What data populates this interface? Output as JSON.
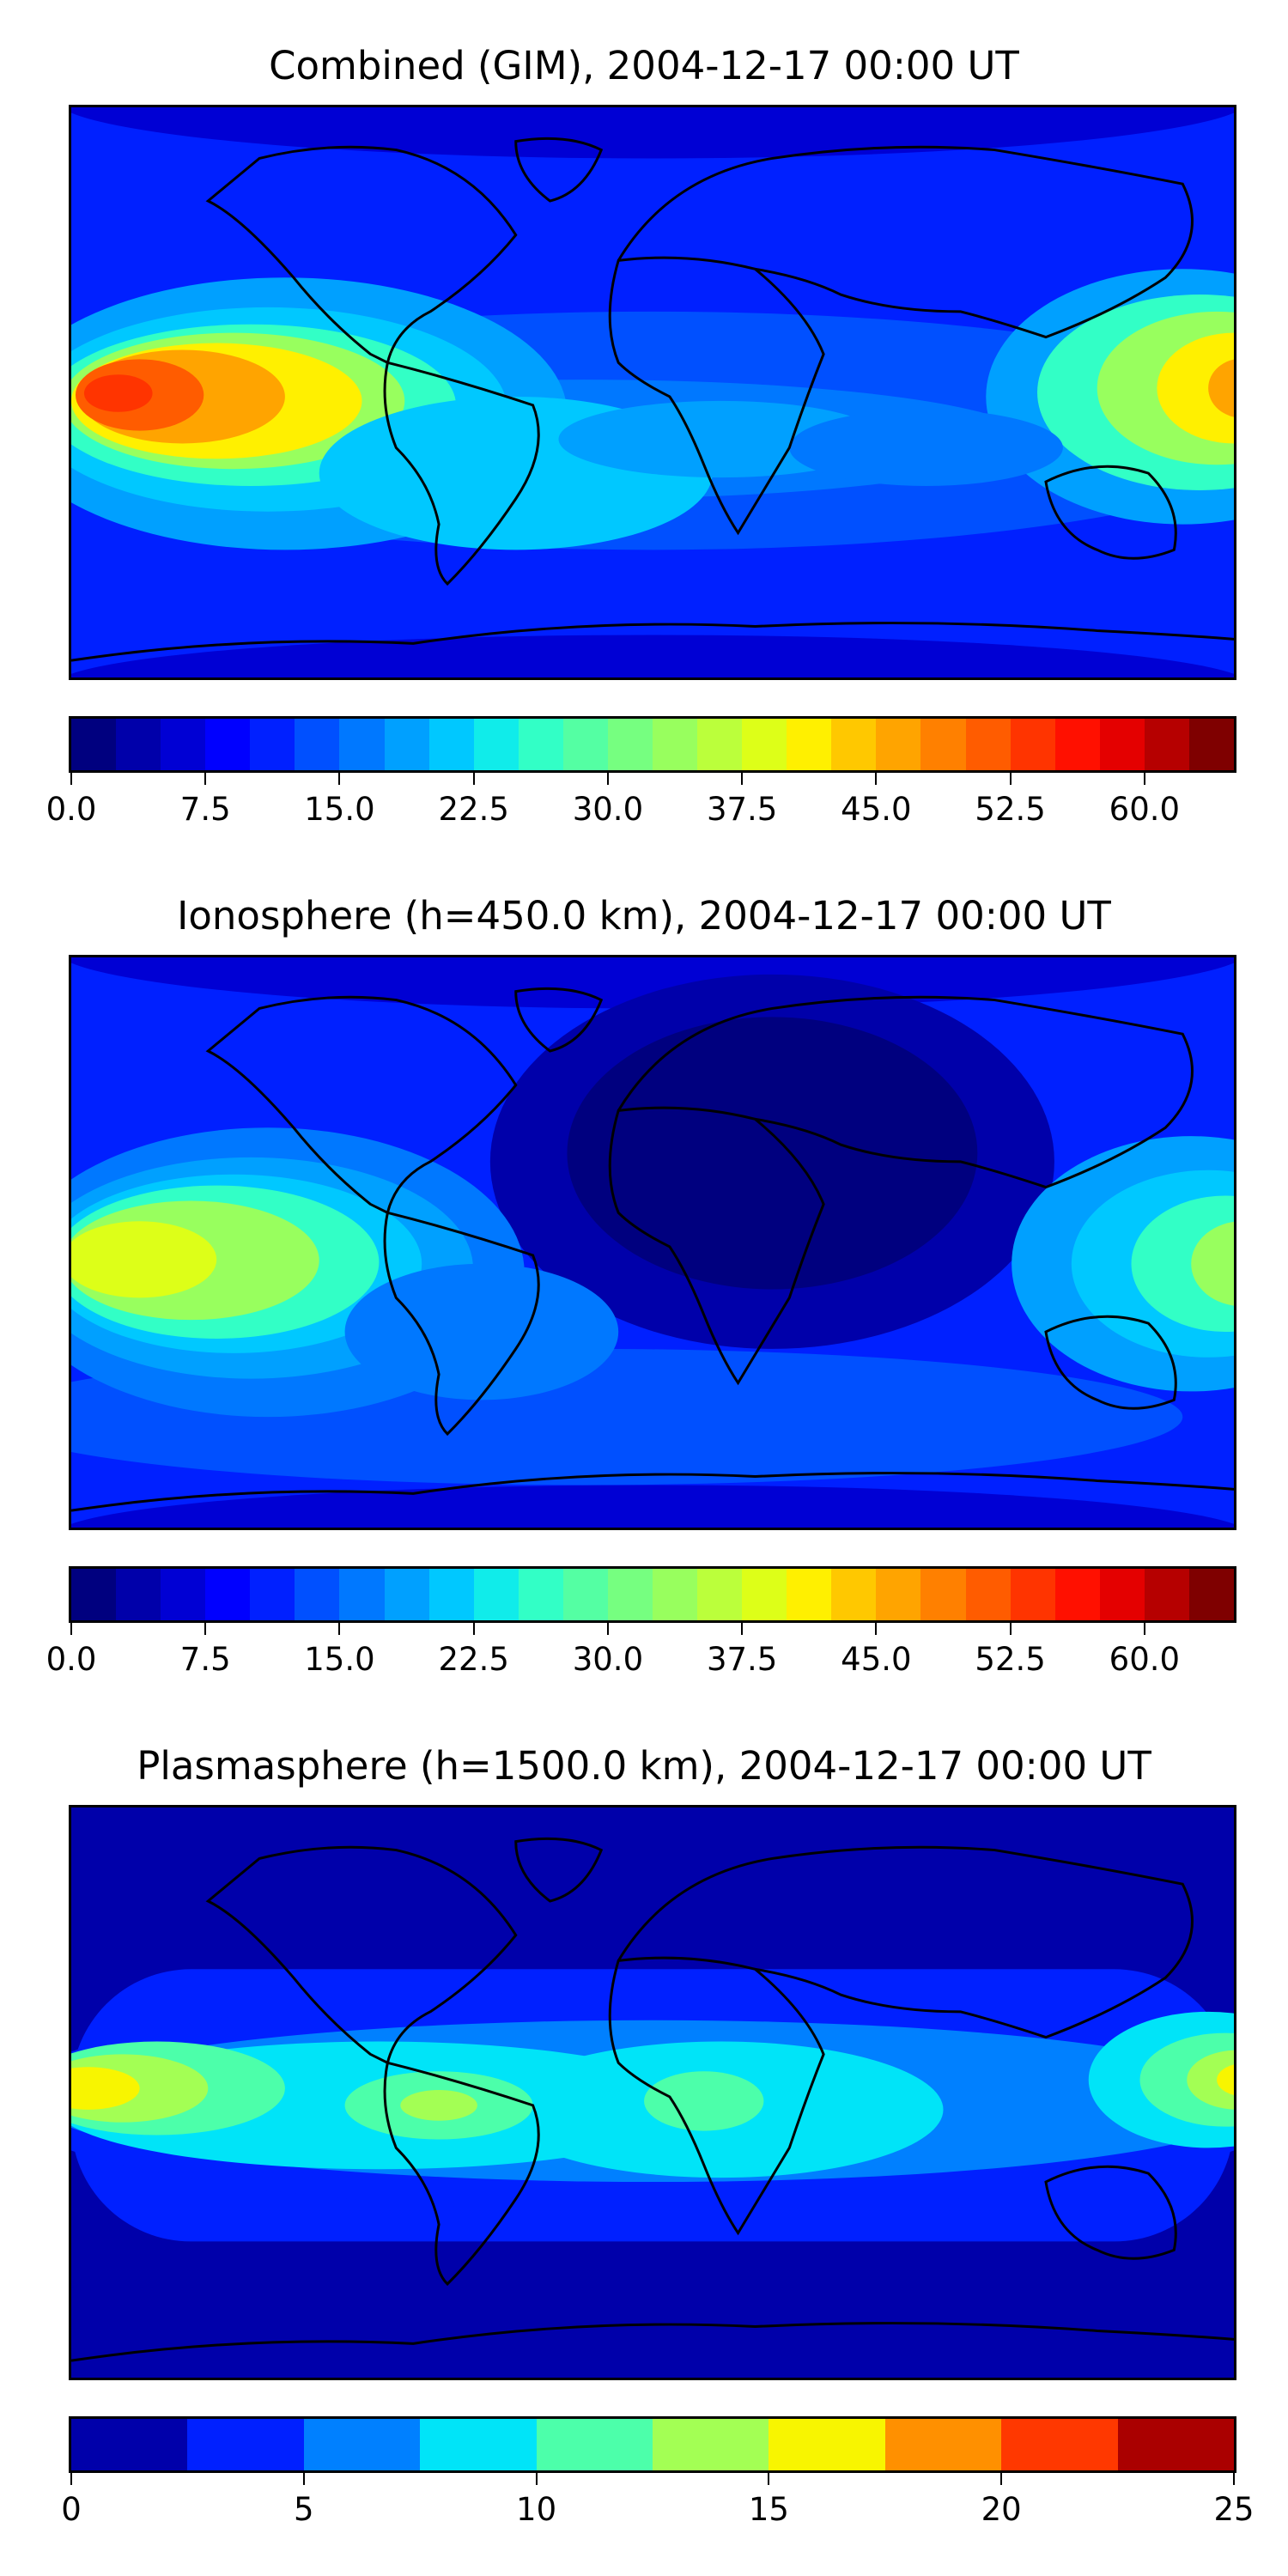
{
  "panels": [
    {
      "title": "Combined (GIM), 2004-12-17 00:00 UT",
      "map_type": "tec-global-contour",
      "colorbar": {
        "min": 0,
        "max": 65,
        "levels": 26,
        "step": 2.5,
        "ticks": [
          "0.0",
          "7.5",
          "15.0",
          "22.5",
          "30.0",
          "37.5",
          "45.0",
          "52.5",
          "60.0"
        ],
        "tick_values": [
          0,
          7.5,
          15,
          22.5,
          30,
          37.5,
          45,
          52.5,
          60
        ]
      },
      "features": [
        {
          "name": "background",
          "level": 7
        },
        {
          "name": "north-polar-low",
          "level": 4
        },
        {
          "name": "south-polar-low",
          "level": 4
        },
        {
          "name": "pacific-crest",
          "level": 14
        },
        {
          "name": "pacific-peak",
          "level": 22
        },
        {
          "name": "western-pacific-crest",
          "level": 14
        },
        {
          "name": "western-pacific-peak",
          "level": 18
        },
        {
          "name": "south-america-band",
          "level": 11
        },
        {
          "name": "atlantic-africa-band",
          "level": 10
        },
        {
          "name": "indian-ocean-band",
          "level": 9
        }
      ]
    },
    {
      "title": "Ionosphere  (h=450.0 km), 2004-12-17 00:00 UT",
      "map_type": "tec-global-contour",
      "colorbar": {
        "min": 0,
        "max": 65,
        "levels": 26,
        "step": 2.5,
        "ticks": [
          "0.0",
          "7.5",
          "15.0",
          "22.5",
          "30.0",
          "37.5",
          "45.0",
          "52.5",
          "60.0"
        ],
        "tick_values": [
          0,
          7.5,
          15,
          22.5,
          30,
          37.5,
          45,
          52.5,
          60
        ]
      },
      "features": [
        {
          "name": "background",
          "level": 4
        },
        {
          "name": "africa-eurasia-low",
          "level": 1
        },
        {
          "name": "pacific-crest",
          "level": 12
        },
        {
          "name": "pacific-peak",
          "level": 16
        },
        {
          "name": "western-pacific-crest",
          "level": 12
        },
        {
          "name": "western-pacific-peak",
          "level": 14
        },
        {
          "name": "south-america-band",
          "level": 8
        },
        {
          "name": "southern-band",
          "level": 6
        }
      ]
    },
    {
      "title": "Plasmasphere (h=1500.0 km), 2004-12-17 00:00 UT",
      "map_type": "tec-global-contour",
      "colorbar": {
        "min": 0,
        "max": 25,
        "levels": 10,
        "step": 2.5,
        "ticks": [
          "0",
          "5",
          "10",
          "15",
          "20",
          "25"
        ],
        "tick_values": [
          0,
          5,
          10,
          15,
          20,
          25
        ]
      },
      "features": [
        {
          "name": "background",
          "level": 1
        },
        {
          "name": "mid-latitude-band",
          "level": 2
        },
        {
          "name": "equatorial-band",
          "level": 3
        },
        {
          "name": "equatorial-core",
          "level": 4
        },
        {
          "name": "pacific-peak",
          "level": 6
        },
        {
          "name": "western-pacific-peak",
          "level": 6
        },
        {
          "name": "atlantic-cell",
          "level": 5
        },
        {
          "name": "africa-cell",
          "level": 5
        }
      ]
    }
  ],
  "palette_26": [
    "#00007f",
    "#0000aa",
    "#0000d4",
    "#0000ff",
    "#0020ff",
    "#0050ff",
    "#0078ff",
    "#00a0ff",
    "#00c8ff",
    "#10ecea",
    "#32ffc6",
    "#54ffa3",
    "#76ff80",
    "#98ff5e",
    "#bbff3b",
    "#ddff18",
    "#fff000",
    "#ffc800",
    "#ffa400",
    "#ff8000",
    "#ff5c00",
    "#ff3400",
    "#ff1000",
    "#e40000",
    "#b60000",
    "#7f0000"
  ],
  "palette_10": [
    "#0000aa",
    "#0020ff",
    "#0080ff",
    "#00e4f8",
    "#4cffaa",
    "#a3ff54",
    "#f8f500",
    "#ff9000",
    "#ff3800",
    "#aa0000"
  ]
}
